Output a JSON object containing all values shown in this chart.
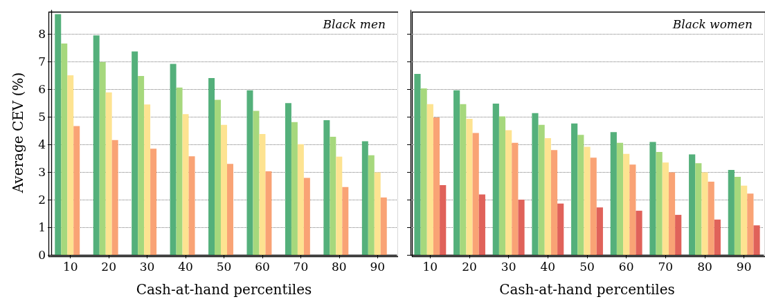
{
  "chart_data": [
    {
      "type": "bar",
      "ylabel": "Average CEV (%)",
      "xlabel": "Cash-at-hand percentiles",
      "annotations": [
        "Black men"
      ],
      "categories": [
        "10",
        "20",
        "30",
        "40",
        "50",
        "60",
        "70",
        "80",
        "90"
      ],
      "ylim": [
        0,
        8.86
      ],
      "yticks": [
        0,
        1,
        2,
        3,
        4,
        5,
        6,
        7,
        8
      ],
      "grid": "y",
      "series": [
        {
          "color": "#54b07b",
          "values": [
            8.72,
            7.95,
            7.37,
            6.92,
            6.41,
            5.96,
            5.5,
            4.88,
            4.12
          ]
        },
        {
          "color": "#a6d87d",
          "values": [
            7.66,
            6.99,
            6.48,
            6.06,
            5.62,
            5.22,
            4.81,
            4.28,
            3.61
          ]
        },
        {
          "color": "#fde391",
          "values": [
            6.51,
            5.89,
            5.45,
            5.1,
            4.71,
            4.38,
            4.01,
            3.56,
            2.99
          ]
        },
        {
          "color": "#f9a375",
          "values": [
            4.67,
            4.16,
            3.85,
            3.57,
            3.3,
            3.03,
            2.79,
            2.46,
            2.08
          ]
        },
        {
          "color": "#e0625a",
          "values": [
            0,
            0,
            0,
            0,
            0,
            0,
            0,
            0,
            0
          ]
        }
      ]
    },
    {
      "type": "bar",
      "xlabel": "Cash-at-hand percentiles",
      "annotations": [
        "Black women"
      ],
      "categories": [
        "10",
        "20",
        "30",
        "40",
        "50",
        "60",
        "70",
        "80",
        "90"
      ],
      "ylim": [
        0,
        8.86
      ],
      "yticks": [
        0,
        1,
        2,
        3,
        4,
        5,
        6,
        7,
        8
      ],
      "grid": "y",
      "tick_labels": "x",
      "series": [
        {
          "color": "#54b07b",
          "values": [
            6.56,
            5.96,
            5.48,
            5.14,
            4.76,
            4.45,
            4.09,
            3.64,
            3.08
          ]
        },
        {
          "color": "#a6d87d",
          "values": [
            6.03,
            5.46,
            5.02,
            4.71,
            4.35,
            4.06,
            3.73,
            3.32,
            2.83
          ]
        },
        {
          "color": "#fde391",
          "values": [
            5.46,
            4.93,
            4.52,
            4.23,
            3.92,
            3.66,
            3.35,
            2.99,
            2.51
          ]
        },
        {
          "color": "#f9a375",
          "values": [
            4.98,
            4.42,
            4.06,
            3.8,
            3.52,
            3.27,
            2.99,
            2.65,
            2.22
          ]
        },
        {
          "color": "#e0625a",
          "values": [
            2.53,
            2.19,
            2,
            1.86,
            1.72,
            1.6,
            1.45,
            1.28,
            1.07
          ]
        }
      ]
    }
  ]
}
